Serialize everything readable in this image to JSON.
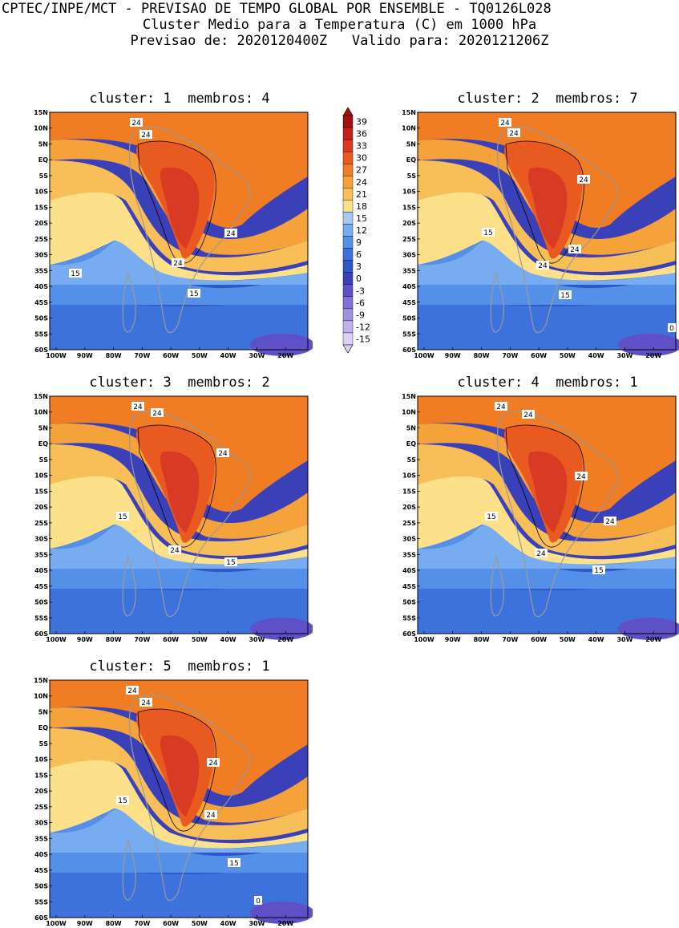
{
  "header": {
    "line1": "CPTEC/INPE/MCT - PREVISAO DE TEMPO GLOBAL POR ENSEMBLE - TQ0126L028",
    "line2": "Cluster Medio para a Temperatura (C) em 1000 hPa",
    "line3": "Previsao de: 2020120400Z   Valido para: 2020121206Z"
  },
  "axes": {
    "lat_labels": [
      "15N",
      "10N",
      "5N",
      "EQ",
      "5S",
      "10S",
      "15S",
      "20S",
      "25S",
      "30S",
      "35S",
      "40S",
      "45S",
      "50S",
      "55S",
      "60S"
    ],
    "lon_labels": [
      "100W",
      "90W",
      "80W",
      "70W",
      "60W",
      "50W",
      "40W",
      "30W",
      "20W"
    ]
  },
  "colorbar": {
    "labels": [
      "39",
      "36",
      "33",
      "30",
      "27",
      "24",
      "21",
      "18",
      "15",
      "12",
      "9",
      "6",
      "3",
      "0",
      "-3",
      "-6",
      "-9",
      "-12",
      "-15"
    ],
    "colors": [
      "#a01010",
      "#c02020",
      "#d83a24",
      "#e85a20",
      "#f07c24",
      "#f5a23a",
      "#f8bf58",
      "#fce08a",
      "#a8c8f0",
      "#78acf0",
      "#5590e8",
      "#3d72dc",
      "#2e58c8",
      "#3a40b8",
      "#6050c8",
      "#8070d8",
      "#a090e0",
      "#c0b0ee",
      "#ddd0f8"
    ]
  },
  "panels": [
    {
      "cluster_label": "cluster:",
      "cluster": "1",
      "membros_label": "membros:",
      "membros": "4",
      "contour_labels": [
        "24",
        "24",
        "24",
        "24",
        "15",
        "15"
      ]
    },
    {
      "cluster_label": "cluster:",
      "cluster": "2",
      "membros_label": "membros:",
      "membros": "7",
      "contour_labels": [
        "24",
        "24",
        "24",
        "24",
        "24",
        "15",
        "15",
        "0"
      ]
    },
    {
      "cluster_label": "cluster:",
      "cluster": "3",
      "membros_label": "membros:",
      "membros": "2",
      "contour_labels": [
        "24",
        "24",
        "24",
        "24",
        "15",
        "15"
      ]
    },
    {
      "cluster_label": "cluster:",
      "cluster": "4",
      "membros_label": "membros:",
      "membros": "1",
      "contour_labels": [
        "24",
        "24",
        "24",
        "24",
        "24",
        "15",
        "15"
      ]
    },
    {
      "cluster_label": "cluster:",
      "cluster": "5",
      "membros_label": "membros:",
      "membros": "1",
      "contour_labels": [
        "24",
        "24",
        "24",
        "24",
        "15",
        "15",
        "0"
      ]
    }
  ]
}
